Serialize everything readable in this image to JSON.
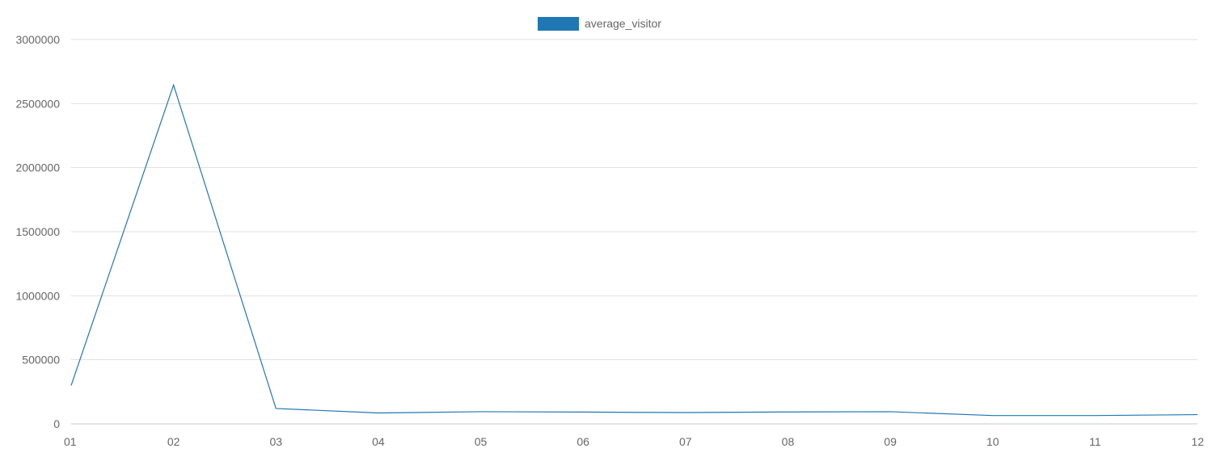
{
  "chart_data": {
    "type": "line",
    "categories": [
      "01",
      "02",
      "03",
      "04",
      "05",
      "06",
      "07",
      "08",
      "09",
      "10",
      "11",
      "12"
    ],
    "series": [
      {
        "name": "average_visitor",
        "color": "#1f77b4",
        "values": [
          300000,
          2645000,
          120000,
          85000,
          95000,
          92000,
          88000,
          93000,
          95000,
          65000,
          65000,
          72000
        ]
      }
    ],
    "ylim": [
      0,
      3000000
    ],
    "yticks": [
      0,
      500000,
      1000000,
      1500000,
      2000000,
      2500000,
      3000000
    ],
    "ytick_labels": [
      "0",
      "500000",
      "1000000",
      "1500000",
      "2000000",
      "2500000",
      "3000000"
    ],
    "grid": true,
    "legend_position": "top-center",
    "title": "",
    "xlabel": "",
    "ylabel": ""
  }
}
